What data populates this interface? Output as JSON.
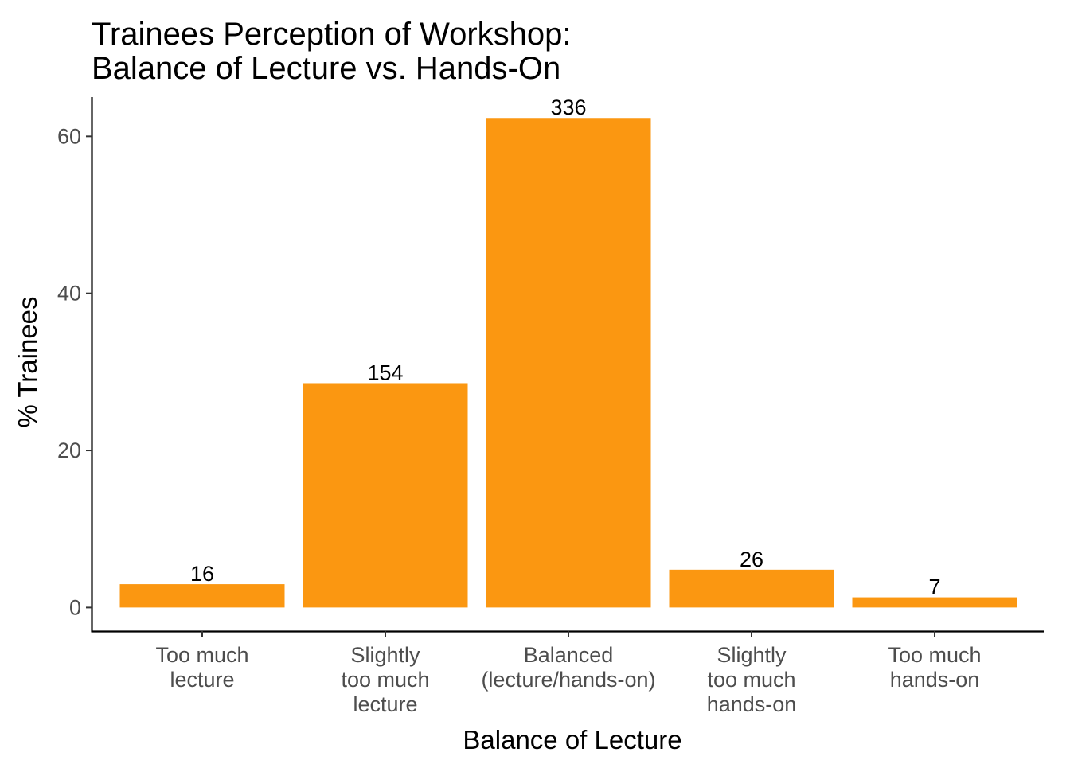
{
  "chart_data": {
    "type": "bar",
    "title": "Trainees Perception of Workshop:",
    "subtitle": "Balance of Lecture vs. Hands-On",
    "xlabel": "Balance of Lecture",
    "ylabel": "% Trainees",
    "categories": [
      [
        "Too much",
        "lecture"
      ],
      [
        "Slightly",
        "too much",
        "lecture"
      ],
      [
        "Balanced",
        "(lecture/hands-on)"
      ],
      [
        "Slightly",
        "too much",
        "hands-on"
      ],
      [
        "Too much",
        "hands-on"
      ]
    ],
    "values": [
      2.97,
      28.57,
      62.34,
      4.82,
      1.3
    ],
    "data_labels": [
      "16",
      "154",
      "336",
      "26",
      "7"
    ],
    "ylim": [
      -3,
      65
    ],
    "yticks": [
      "0",
      "20",
      "40",
      "60"
    ],
    "bar_color": "#FB9711",
    "grid": false,
    "legend": "none"
  }
}
